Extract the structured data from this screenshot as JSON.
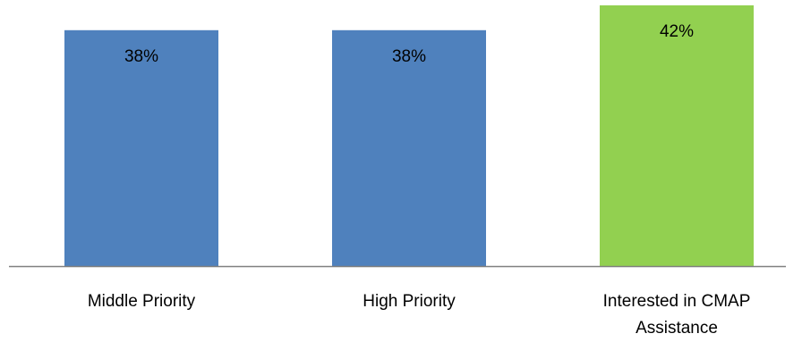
{
  "chart_data": {
    "type": "bar",
    "categories": [
      "Middle Priority",
      "High Priority",
      "Interested in CMAP Assistance"
    ],
    "category_lines": [
      [
        "Middle Priority"
      ],
      [
        "High Priority"
      ],
      [
        "Interested in CMAP",
        "Assistance"
      ]
    ],
    "values": [
      38,
      38,
      42
    ],
    "data_labels": [
      "38%",
      "38%",
      "42%"
    ],
    "value_unit": "%",
    "ylim": [
      0,
      42
    ],
    "colors": [
      "#4F81BD",
      "#4F81BD",
      "#92D050"
    ],
    "axis_color": "#808080",
    "grid": false,
    "legend": "none",
    "title": "",
    "xlabel": "",
    "ylabel": ""
  }
}
